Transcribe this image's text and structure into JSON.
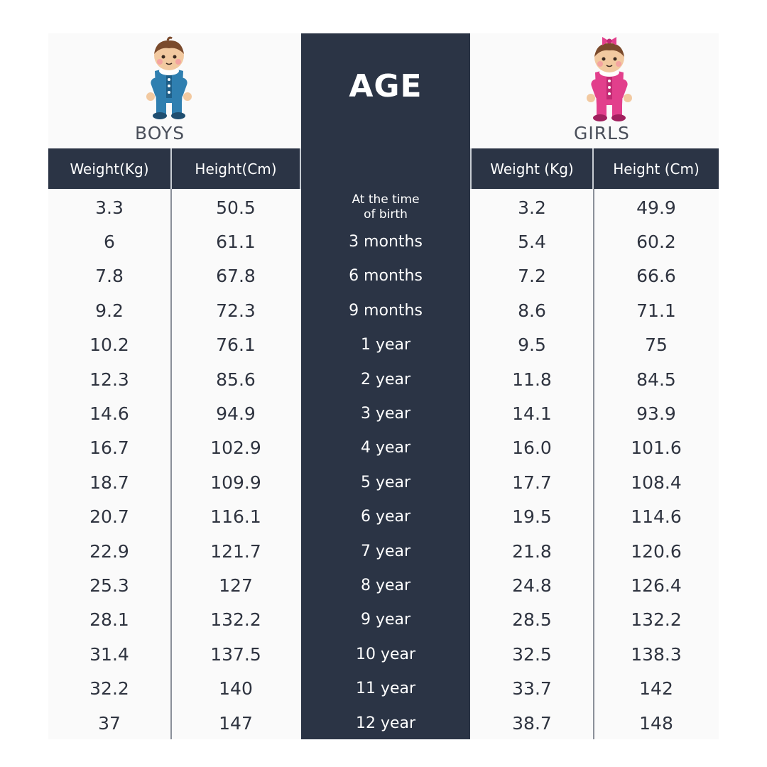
{
  "header": {
    "boys_label": "BOYS",
    "girls_label": "GIRLS",
    "age_title": "AGE",
    "columns": {
      "boys_weight": "Weight(Kg)",
      "boys_height": "Height(Cm)",
      "age": "",
      "girls_weight": "Weight  (Kg)",
      "girls_height": "Height  (Cm)"
    }
  },
  "icons": {
    "boy": "boy-baby-icon",
    "girl": "girl-baby-icon"
  },
  "colors": {
    "band": "#2b3445",
    "boy_outfit": "#2f7fb0",
    "girl_outfit": "#e23f8c"
  },
  "chart_data": {
    "type": "table",
    "columns": [
      "Weight(Kg)",
      "Height(Cm)",
      "",
      "Weight  (Kg)",
      "Height  (Cm)"
    ],
    "rows": [
      {
        "boys_weight": "3.3",
        "boys_height": "50.5",
        "age": "At the time of birth",
        "girls_weight": "3.2",
        "girls_height": "49.9"
      },
      {
        "boys_weight": "6",
        "boys_height": "61.1",
        "age": "3 months",
        "girls_weight": "5.4",
        "girls_height": "60.2"
      },
      {
        "boys_weight": "7.8",
        "boys_height": "67.8",
        "age": "6 months",
        "girls_weight": "7.2",
        "girls_height": "66.6"
      },
      {
        "boys_weight": "9.2",
        "boys_height": "72.3",
        "age": "9 months",
        "girls_weight": "8.6",
        "girls_height": "71.1"
      },
      {
        "boys_weight": "10.2",
        "boys_height": "76.1",
        "age": "1 year",
        "girls_weight": "9.5",
        "girls_height": "75"
      },
      {
        "boys_weight": "12.3",
        "boys_height": "85.6",
        "age": "2 year",
        "girls_weight": "11.8",
        "girls_height": "84.5"
      },
      {
        "boys_weight": "14.6",
        "boys_height": "94.9",
        "age": "3 year",
        "girls_weight": "14.1",
        "girls_height": "93.9"
      },
      {
        "boys_weight": "16.7",
        "boys_height": "102.9",
        "age": "4 year",
        "girls_weight": "16.0",
        "girls_height": "101.6"
      },
      {
        "boys_weight": "18.7",
        "boys_height": "109.9",
        "age": "5 year",
        "girls_weight": "17.7",
        "girls_height": "108.4"
      },
      {
        "boys_weight": "20.7",
        "boys_height": "116.1",
        "age": "6 year",
        "girls_weight": "19.5",
        "girls_height": "114.6"
      },
      {
        "boys_weight": "22.9",
        "boys_height": "121.7",
        "age": "7 year",
        "girls_weight": "21.8",
        "girls_height": "120.6"
      },
      {
        "boys_weight": "25.3",
        "boys_height": "127",
        "age": "8 year",
        "girls_weight": "24.8",
        "girls_height": "126.4"
      },
      {
        "boys_weight": "28.1",
        "boys_height": "132.2",
        "age": "9 year",
        "girls_weight": "28.5",
        "girls_height": "132.2"
      },
      {
        "boys_weight": "31.4",
        "boys_height": "137.5",
        "age": "10 year",
        "girls_weight": "32.5",
        "girls_height": "138.3"
      },
      {
        "boys_weight": "32.2",
        "boys_height": "140",
        "age": "11 year",
        "girls_weight": "33.7",
        "girls_height": "142"
      },
      {
        "boys_weight": "37",
        "boys_height": "147",
        "age": "12 year",
        "girls_weight": "38.7",
        "girls_height": "148"
      }
    ]
  }
}
